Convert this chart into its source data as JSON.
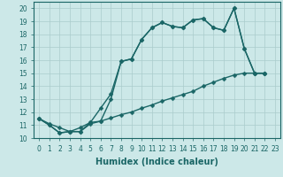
{
  "xlabel": "Humidex (Indice chaleur)",
  "xlim": [
    -0.5,
    23.5
  ],
  "ylim": [
    10,
    20.5
  ],
  "xticks": [
    0,
    1,
    2,
    3,
    4,
    5,
    6,
    7,
    8,
    9,
    10,
    11,
    12,
    13,
    14,
    15,
    16,
    17,
    18,
    19,
    20,
    21,
    22,
    23
  ],
  "yticks": [
    10,
    11,
    12,
    13,
    14,
    15,
    16,
    17,
    18,
    19,
    20
  ],
  "bg_color": "#cce8e8",
  "grid_color": "#aacccc",
  "line_color": "#1a6666",
  "line1_x": [
    0,
    1,
    2,
    3,
    4,
    5,
    6,
    7,
    8,
    9,
    10,
    11,
    12,
    13,
    14,
    15,
    16,
    17,
    18,
    19,
    20,
    21,
    22
  ],
  "line1_y": [
    11.5,
    11.0,
    10.4,
    10.5,
    10.5,
    11.2,
    11.3,
    13.0,
    15.9,
    16.1,
    17.6,
    18.5,
    18.9,
    18.6,
    18.5,
    19.1,
    19.2,
    18.5,
    18.3,
    20.0,
    16.9,
    15.0,
    15.0
  ],
  "line2_x": [
    0,
    1,
    2,
    3,
    4,
    5,
    6,
    7,
    8,
    9,
    10,
    11,
    12,
    13,
    14,
    15,
    16,
    17,
    18,
    19,
    20,
    21,
    22
  ],
  "line2_y": [
    11.5,
    11.0,
    10.4,
    10.5,
    10.8,
    11.2,
    12.3,
    13.4,
    15.9,
    16.1,
    17.6,
    18.5,
    18.9,
    18.6,
    18.5,
    19.1,
    19.2,
    18.5,
    18.3,
    20.0,
    16.9,
    15.0,
    15.0
  ],
  "line3_x": [
    0,
    1,
    2,
    3,
    4,
    5,
    6,
    7,
    8,
    9,
    10,
    11,
    12,
    13,
    14,
    15,
    16,
    17,
    18,
    19,
    20,
    21,
    22
  ],
  "line3_y": [
    11.5,
    11.1,
    10.8,
    10.5,
    10.5,
    11.1,
    11.3,
    11.55,
    11.8,
    12.0,
    12.3,
    12.55,
    12.85,
    13.1,
    13.35,
    13.6,
    14.0,
    14.3,
    14.6,
    14.85,
    15.0,
    15.0,
    15.0
  ],
  "marker": "D",
  "markersize": 2.5,
  "linewidth": 1.0,
  "tick_fontsize": 5.5,
  "xlabel_fontsize": 7
}
